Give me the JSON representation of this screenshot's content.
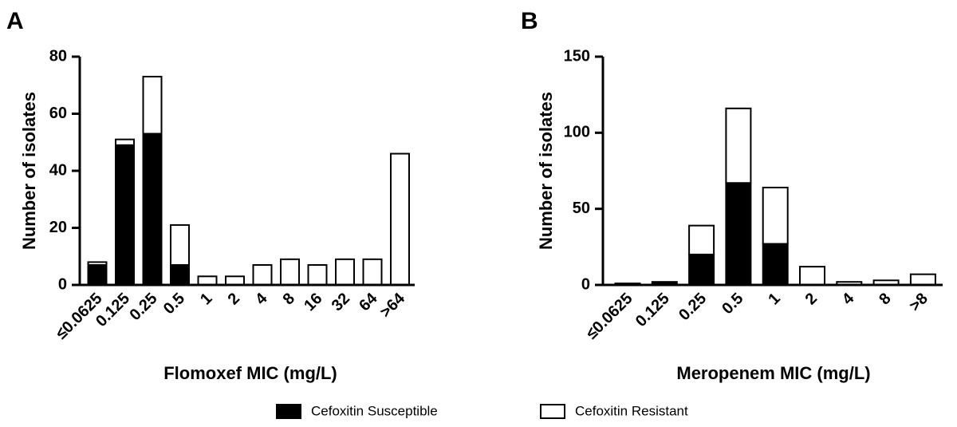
{
  "colors": {
    "susceptible": "#000000",
    "resistant": "#ffffff",
    "axis": "#000000"
  },
  "legend": {
    "items": [
      {
        "label": "Cefoxitin Susceptible",
        "color": "#000000"
      },
      {
        "label": "Cefoxitin Resistant",
        "color": "#ffffff"
      }
    ]
  },
  "chart_data": [
    {
      "panel": "A",
      "type": "bar",
      "stacked": true,
      "categories": [
        "≤0.0625",
        "0.125",
        "0.25",
        "0.5",
        "1",
        "2",
        "4",
        "8",
        "16",
        "32",
        "64",
        ">64"
      ],
      "series": [
        {
          "name": "Cefoxitin Susceptible",
          "values": [
            7,
            49,
            53,
            7,
            0,
            0,
            0,
            0,
            0,
            0,
            0,
            0
          ]
        },
        {
          "name": "Cefoxitin Resistant",
          "values": [
            1,
            2,
            20,
            14,
            3,
            3,
            7,
            9,
            7,
            9,
            9,
            46
          ]
        }
      ],
      "xlabel": "Flomoxef MIC (mg/L)",
      "ylabel": "Number of isolates",
      "ylim": [
        0,
        80
      ],
      "yticks": [
        "0",
        "20",
        "40",
        "60",
        "80"
      ],
      "legend_position": "bottom"
    },
    {
      "panel": "B",
      "type": "bar",
      "stacked": true,
      "categories": [
        "≤0.0625",
        "0.125",
        "0.25",
        "0.5",
        "1",
        "2",
        "4",
        "8",
        ">8"
      ],
      "series": [
        {
          "name": "Cefoxitin Susceptible",
          "values": [
            1,
            2,
            20,
            67,
            27,
            0,
            0,
            0,
            0
          ]
        },
        {
          "name": "Cefoxitin Resistant",
          "values": [
            0,
            0,
            19,
            49,
            37,
            12,
            2,
            3,
            7
          ]
        }
      ],
      "xlabel": "Meropenem MIC (mg/L)",
      "ylabel": "Number of isolates",
      "ylim": [
        0,
        150
      ],
      "yticks": [
        "0",
        "50",
        "100",
        "150"
      ],
      "legend_position": "bottom"
    }
  ]
}
